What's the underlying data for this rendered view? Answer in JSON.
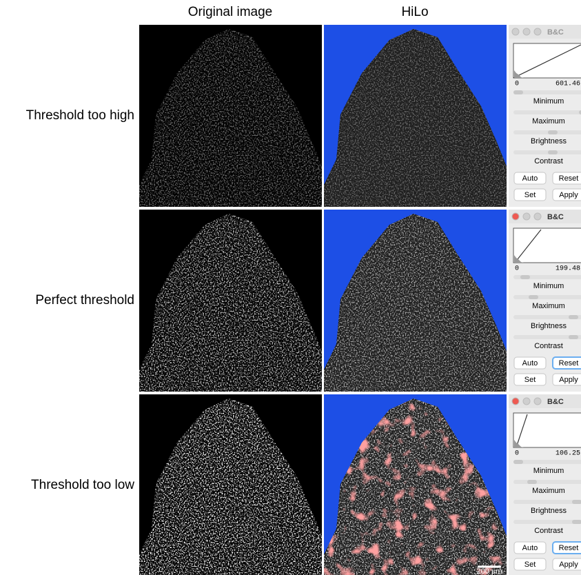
{
  "columns": [
    "Original image",
    "HiLo"
  ],
  "rows": [
    {
      "label": "Threshold too high",
      "window_active": false,
      "panel": {
        "title": "B&C",
        "hist_min": "0",
        "hist_max": "601.46",
        "sliders": [
          "Minimum",
          "Maximum",
          "Brightness",
          "Contrast"
        ],
        "buttons": [
          "Auto",
          "Reset",
          "Set",
          "Apply"
        ]
      }
    },
    {
      "label": "Perfect threshold",
      "window_active": true,
      "panel": {
        "title": "B&C",
        "hist_min": "0",
        "hist_max": "199.48",
        "sliders": [
          "Minimum",
          "Maximum",
          "Brightness",
          "Contrast"
        ],
        "buttons": [
          "Auto",
          "Reset",
          "Set",
          "Apply"
        ]
      }
    },
    {
      "label": "Threshold too low",
      "window_active": true,
      "panel": {
        "title": "B&C",
        "hist_min": "0",
        "hist_max": "106.25",
        "sliders": [
          "Minimum",
          "Maximum",
          "Brightness",
          "Contrast"
        ],
        "buttons": [
          "Auto",
          "Reset",
          "Set",
          "Apply"
        ]
      }
    }
  ],
  "scale_bar": "200 µm"
}
